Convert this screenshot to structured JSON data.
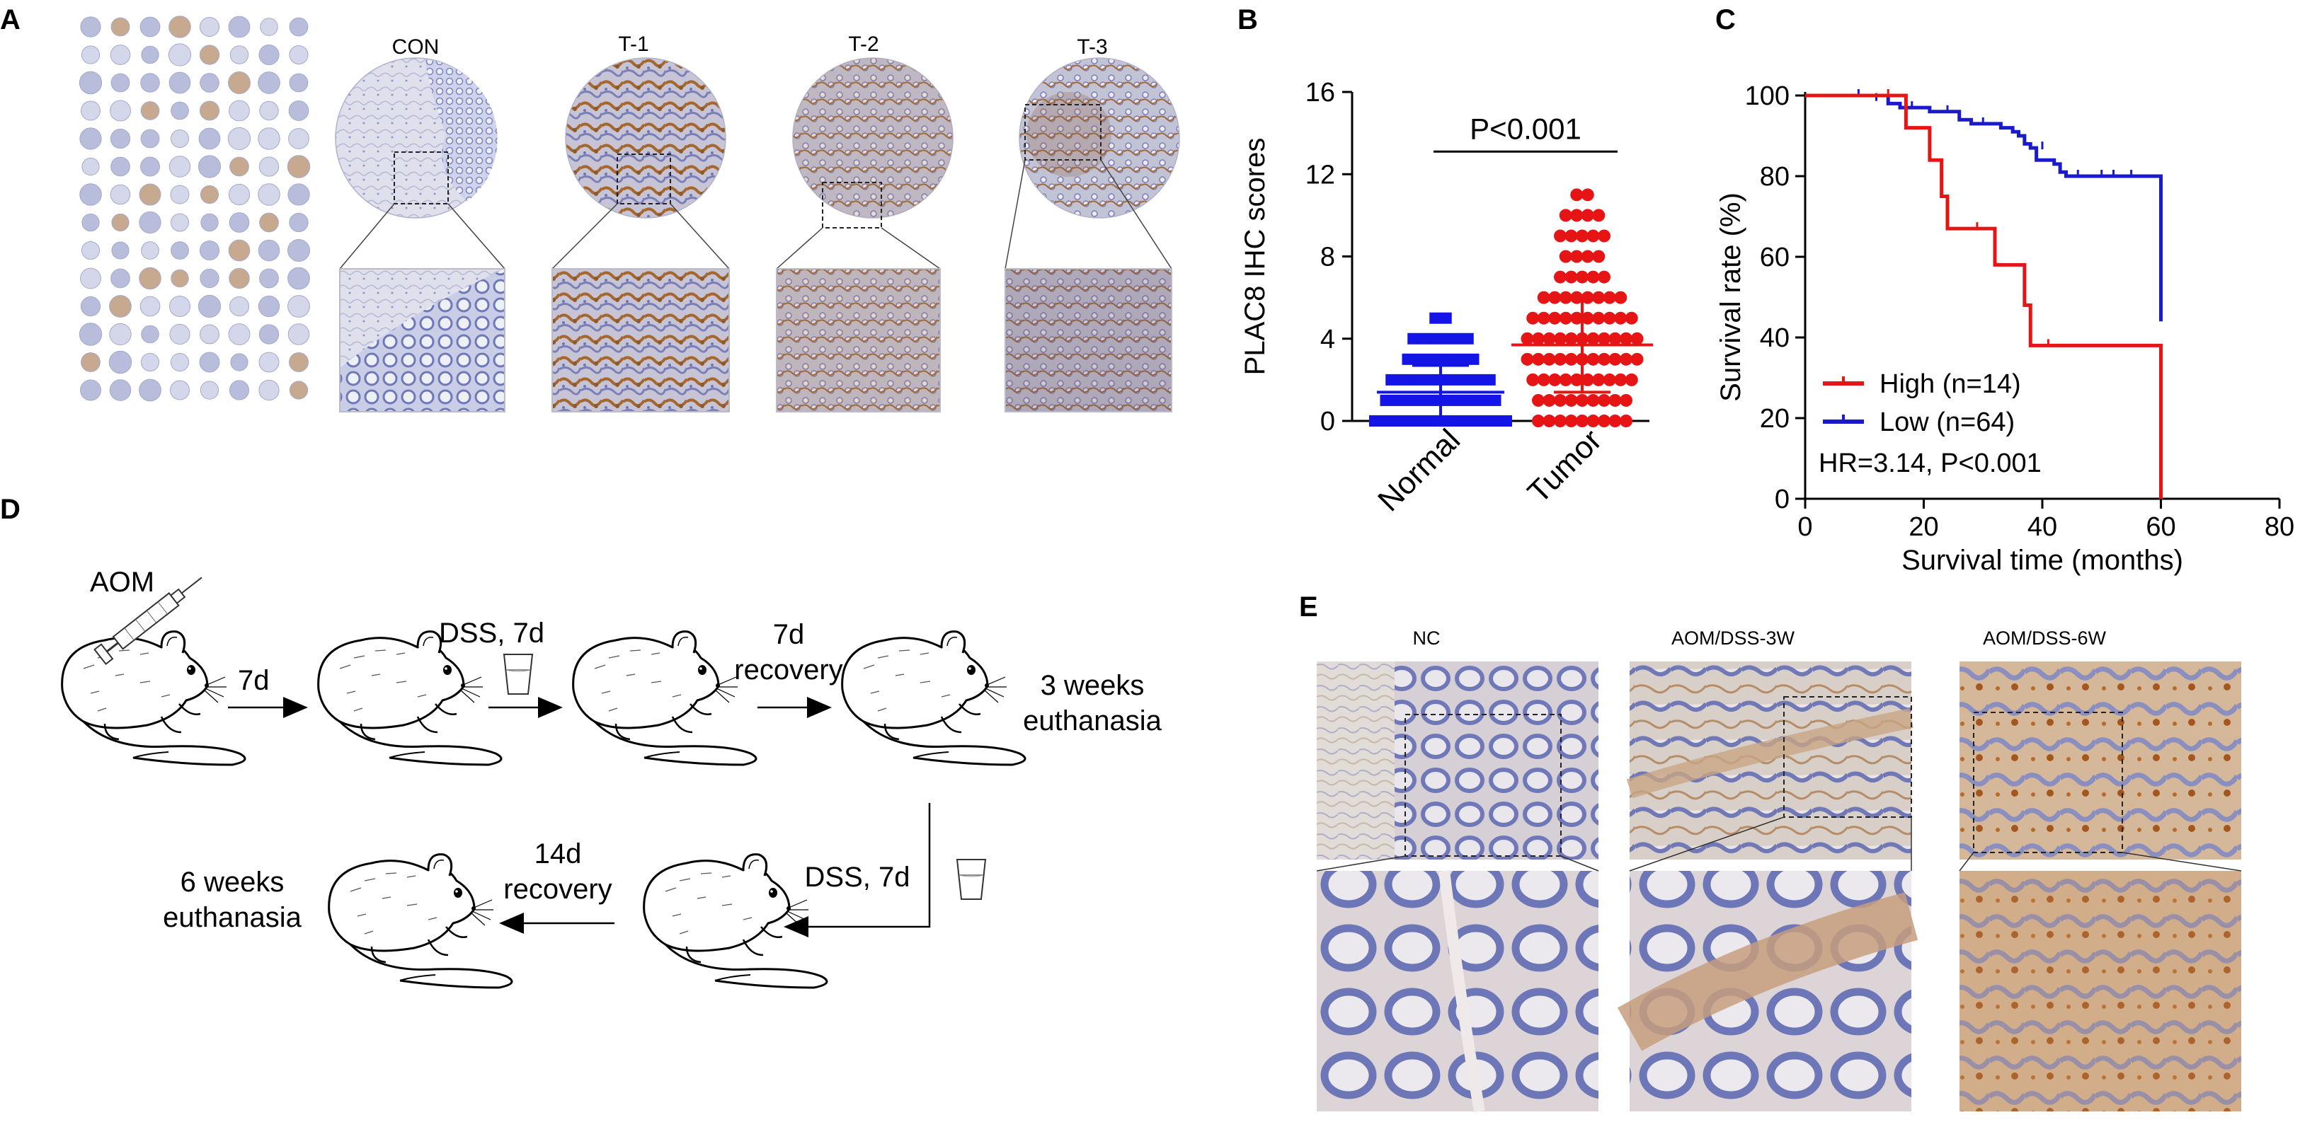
{
  "panel_labels": {
    "a": "A",
    "b": "B",
    "c": "C",
    "d": "D",
    "e": "E"
  },
  "panel_a": {
    "core_labels": [
      "CON",
      "T-1",
      "T-2",
      "T-3"
    ]
  },
  "panel_d": {
    "aom": "AOM",
    "step1": "7d",
    "step2": "DSS, 7d",
    "step3_line1": "7d",
    "step3_line2": "recovery",
    "end1_line1": "3 weeks",
    "end1_line2": "euthanasia",
    "step4": "DSS, 7d",
    "step5_line1": "14d",
    "step5_line2": "recovery",
    "end2_line1": "6 weeks",
    "end2_line2": "euthanasia"
  },
  "panel_e": {
    "column_labels": [
      "NC",
      "AOM/DSS-3W",
      "AOM/DSS-6W"
    ]
  },
  "colors": {
    "normal": "#1414e6",
    "tumor": "#e61414",
    "high": "#e61414",
    "low": "#1a1acc",
    "ihc_blue": "#9aa2d0",
    "ihc_brown": "#a5672e"
  },
  "chart_data": [
    {
      "type": "scatter",
      "panel": "B",
      "ylabel": "PLAC8 IHC scores",
      "ylim": [
        0,
        16
      ],
      "yticks": [
        "0",
        "4",
        "8",
        "12",
        "16"
      ],
      "categories": [
        "Normal",
        "Tumor"
      ],
      "annotation": "P<0.001",
      "series": [
        {
          "category": "Normal",
          "marker": "square",
          "levels": [
            {
              "y": 0,
              "count": 13
            },
            {
              "y": 1,
              "count": 11
            },
            {
              "y": 2,
              "count": 10
            },
            {
              "y": 3,
              "count": 7
            },
            {
              "y": 4,
              "count": 6
            },
            {
              "y": 5,
              "count": 2
            }
          ],
          "mean": 1.4,
          "sd": 1.3
        },
        {
          "category": "Tumor",
          "marker": "circle",
          "levels": [
            {
              "y": 0,
              "count": 9
            },
            {
              "y": 1,
              "count": 9
            },
            {
              "y": 2,
              "count": 10
            },
            {
              "y": 3,
              "count": 11
            },
            {
              "y": 4,
              "count": 11
            },
            {
              "y": 5,
              "count": 10
            },
            {
              "y": 6,
              "count": 8
            },
            {
              "y": 7,
              "count": 5
            },
            {
              "y": 8,
              "count": 4
            },
            {
              "y": 9,
              "count": 5
            },
            {
              "y": 10,
              "count": 4
            },
            {
              "y": 11,
              "count": 2
            }
          ],
          "mean": 3.7,
          "sd": 2.3
        }
      ]
    },
    {
      "type": "line",
      "panel": "C",
      "xlabel": "Survival time (months)",
      "ylabel": "Survival rate (%)",
      "xlim": [
        0,
        80
      ],
      "ylim": [
        0,
        100
      ],
      "xticks": [
        "0",
        "20",
        "40",
        "60",
        "80"
      ],
      "yticks": [
        "0",
        "20",
        "40",
        "60",
        "80",
        "100"
      ],
      "legend_position": "bottom-left",
      "annotation": "HR=3.14, P<0.001",
      "series": [
        {
          "name": "High (n=14)",
          "color": "#e61414",
          "steps": [
            [
              0,
              100
            ],
            [
              17,
              100
            ],
            [
              17,
              92
            ],
            [
              21,
              92
            ],
            [
              21,
              84
            ],
            [
              23,
              84
            ],
            [
              23,
              75
            ],
            [
              24,
              75
            ],
            [
              24,
              67
            ],
            [
              32,
              67
            ],
            [
              32,
              58
            ],
            [
              37,
              58
            ],
            [
              37,
              48
            ],
            [
              38,
              48
            ],
            [
              38,
              38
            ],
            [
              60,
              38
            ],
            [
              60,
              0
            ]
          ],
          "censored": [
            [
              14,
              100
            ],
            [
              29,
              67
            ],
            [
              41,
              38
            ]
          ]
        },
        {
          "name": "Low (n=64)",
          "color": "#1a1acc",
          "steps": [
            [
              0,
              100
            ],
            [
              14,
              100
            ],
            [
              14,
              98
            ],
            [
              16,
              98
            ],
            [
              16,
              97
            ],
            [
              21,
              97
            ],
            [
              21,
              96
            ],
            [
              26,
              96
            ],
            [
              26,
              94
            ],
            [
              28,
              94
            ],
            [
              28,
              93
            ],
            [
              33,
              93
            ],
            [
              33,
              92
            ],
            [
              35,
              92
            ],
            [
              35,
              91
            ],
            [
              36,
              91
            ],
            [
              36,
              90
            ],
            [
              37,
              90
            ],
            [
              37,
              88
            ],
            [
              38,
              88
            ],
            [
              38,
              87
            ],
            [
              39,
              87
            ],
            [
              39,
              84
            ],
            [
              42,
              84
            ],
            [
              42,
              83
            ],
            [
              43,
              83
            ],
            [
              43,
              81
            ],
            [
              44,
              81
            ],
            [
              44,
              80
            ],
            [
              60,
              80
            ],
            [
              60,
              44
            ]
          ],
          "censored": [
            [
              9,
              100
            ],
            [
              12,
              99
            ],
            [
              18,
              97
            ],
            [
              24,
              96
            ],
            [
              30,
              93
            ],
            [
              40,
              87
            ],
            [
              46,
              80
            ],
            [
              50,
              80
            ],
            [
              52,
              80
            ],
            [
              55,
              80
            ]
          ]
        }
      ]
    }
  ]
}
